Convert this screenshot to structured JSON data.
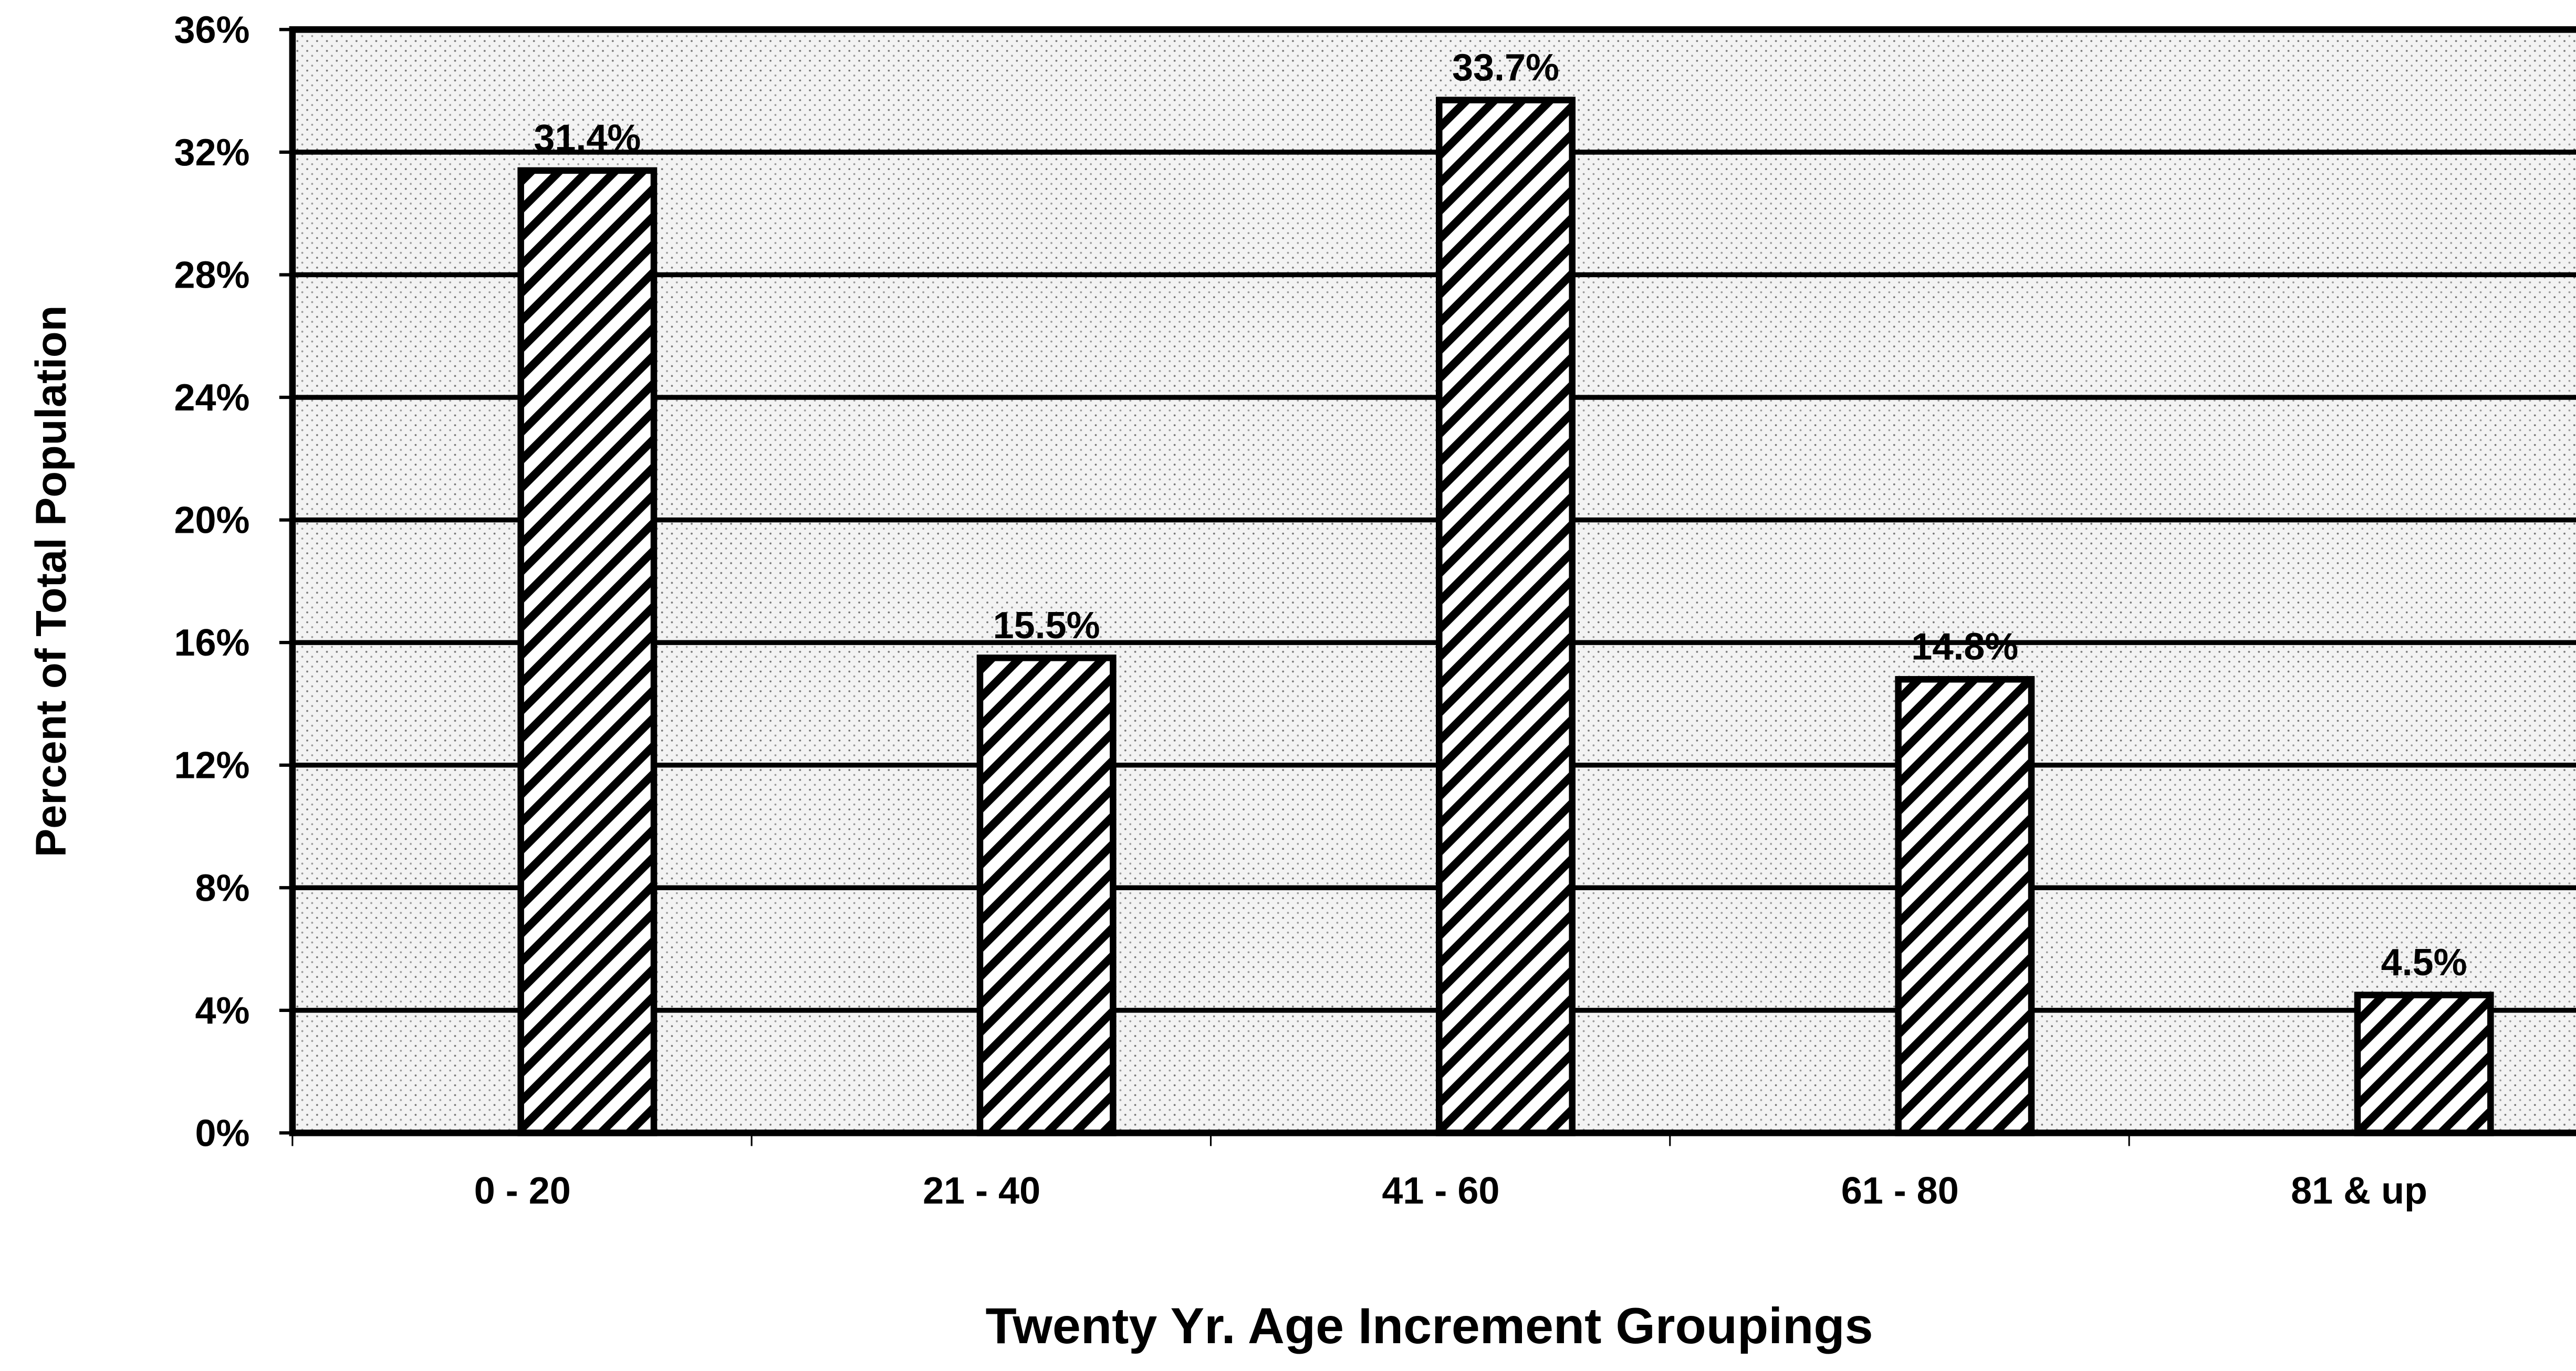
{
  "chart_data": {
    "type": "bar",
    "y_label": "Percent of Total Population",
    "x_label": "Twenty Yr. Age Increment Groupings",
    "categories": [
      "0 - 20",
      "21 - 40",
      "41 - 60",
      "61 - 80",
      "81 & up"
    ],
    "values": [
      31.4,
      15.5,
      33.7,
      14.8,
      4.5
    ],
    "value_labels": [
      "31.4%",
      "15.5%",
      "33.7%",
      "14.8%",
      "4.5%"
    ],
    "ylim": [
      0,
      36
    ],
    "yticks": [
      {
        "value": 0,
        "label": "0%"
      },
      {
        "value": 4,
        "label": "4%"
      },
      {
        "value": 8,
        "label": "8%"
      },
      {
        "value": 12,
        "label": "12%"
      },
      {
        "value": 16,
        "label": "16%"
      },
      {
        "value": 20,
        "label": "20%"
      },
      {
        "value": 24,
        "label": "24%"
      },
      {
        "value": 28,
        "label": "28%"
      },
      {
        "value": 32,
        "label": "32%"
      },
      {
        "value": 36,
        "label": "36%"
      }
    ],
    "grid": true
  }
}
